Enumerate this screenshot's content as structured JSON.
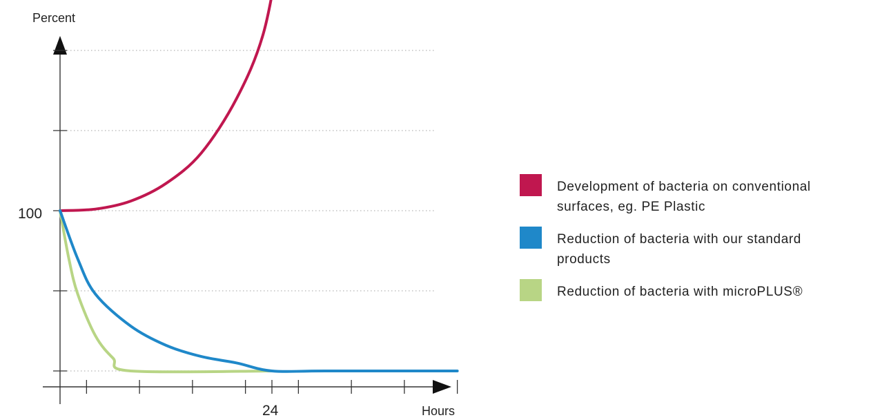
{
  "chart_data": {
    "type": "line",
    "ylabel": "Percent",
    "xlabel": "Hours",
    "y_tick_label": {
      "value": 100,
      "text": "100"
    },
    "x_tick_label": {
      "value": 24,
      "text": "24"
    },
    "grid": "horizontal-dotted",
    "legend_position": "right",
    "series": [
      {
        "name": "Development of bacteria on conventional surfaces, eg. PE Plastic",
        "color": "#c0174f",
        "points": [
          [
            0,
            100
          ],
          [
            4,
            101
          ],
          [
            8,
            106
          ],
          [
            12,
            117
          ],
          [
            16,
            136
          ],
          [
            20,
            170
          ],
          [
            23,
            210
          ],
          [
            25,
            265
          ],
          [
            26,
            290
          ]
        ]
      },
      {
        "name": "Reduction of bacteria with our standard products",
        "color": "#1f88c9",
        "points": [
          [
            0,
            100
          ],
          [
            2,
            70
          ],
          [
            4,
            48
          ],
          [
            8,
            28
          ],
          [
            12,
            16
          ],
          [
            16,
            9
          ],
          [
            20,
            5
          ],
          [
            24,
            0
          ],
          [
            30,
            0
          ],
          [
            45,
            0
          ]
        ]
      },
      {
        "name": "Reduction of bacteria with microPLUS®",
        "color": "#b8d585",
        "points": [
          [
            0,
            100
          ],
          [
            1,
            70
          ],
          [
            2,
            48
          ],
          [
            4,
            22
          ],
          [
            6,
            8
          ],
          [
            8,
            0
          ],
          [
            24,
            0
          ]
        ]
      }
    ]
  }
}
